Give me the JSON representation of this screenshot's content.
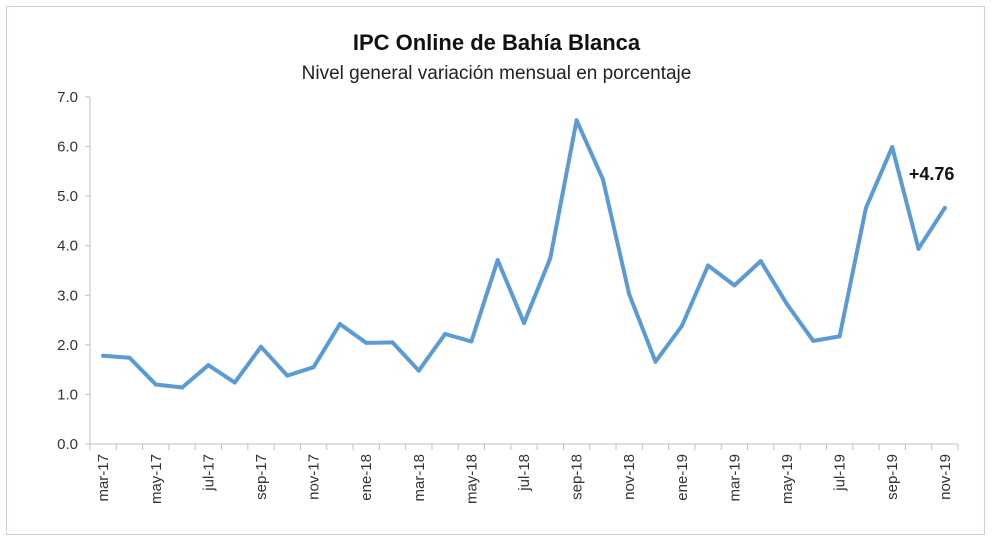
{
  "chart_data": {
    "type": "line",
    "title": "IPC Online de Bahía Blanca",
    "subtitle": "Nivel general variación mensual en porcentaje",
    "xlabel": "",
    "ylabel": "",
    "ylim": [
      0,
      7
    ],
    "yticks": [
      "0.0",
      "1.0",
      "2.0",
      "3.0",
      "4.0",
      "5.0",
      "6.0",
      "7.0"
    ],
    "grid": false,
    "legend": "none",
    "color": "#5b9bd5",
    "categories": [
      "mar-17",
      "abr-17",
      "may-17",
      "jun-17",
      "jul-17",
      "ago-17",
      "sep-17",
      "oct-17",
      "nov-17",
      "dic-17",
      "ene-18",
      "feb-18",
      "mar-18",
      "abr-18",
      "may-18",
      "jun-18",
      "jul-18",
      "ago-18",
      "sep-18",
      "oct-18",
      "nov-18",
      "dic-18",
      "ene-19",
      "feb-19",
      "mar-19",
      "abr-19",
      "may-19",
      "jun-19",
      "jul-19",
      "ago-19",
      "sep-19",
      "oct-19",
      "nov-19"
    ],
    "tick_labels": [
      "mar-17",
      "",
      "may-17",
      "",
      "jul-17",
      "",
      "sep-17",
      "",
      "nov-17",
      "",
      "ene-18",
      "",
      "mar-18",
      "",
      "may-18",
      "",
      "jul-18",
      "",
      "sep-18",
      "",
      "nov-18",
      "",
      "ene-19",
      "",
      "mar-19",
      "",
      "may-19",
      "",
      "jul-19",
      "",
      "sep-19",
      "",
      "nov-19"
    ],
    "series": [
      {
        "values": [
          1.78,
          1.74,
          1.2,
          1.14,
          1.59,
          1.24,
          1.96,
          1.38,
          1.55,
          2.42,
          2.04,
          2.05,
          1.48,
          2.22,
          2.07,
          3.71,
          2.44,
          3.75,
          6.53,
          5.34,
          3.02,
          1.66,
          2.38,
          3.6,
          3.2,
          3.69,
          2.82,
          2.08,
          2.17,
          4.76,
          5.99,
          3.94,
          4.76
        ]
      }
    ],
    "annotation": {
      "text": "+4.76",
      "index": 32
    }
  }
}
